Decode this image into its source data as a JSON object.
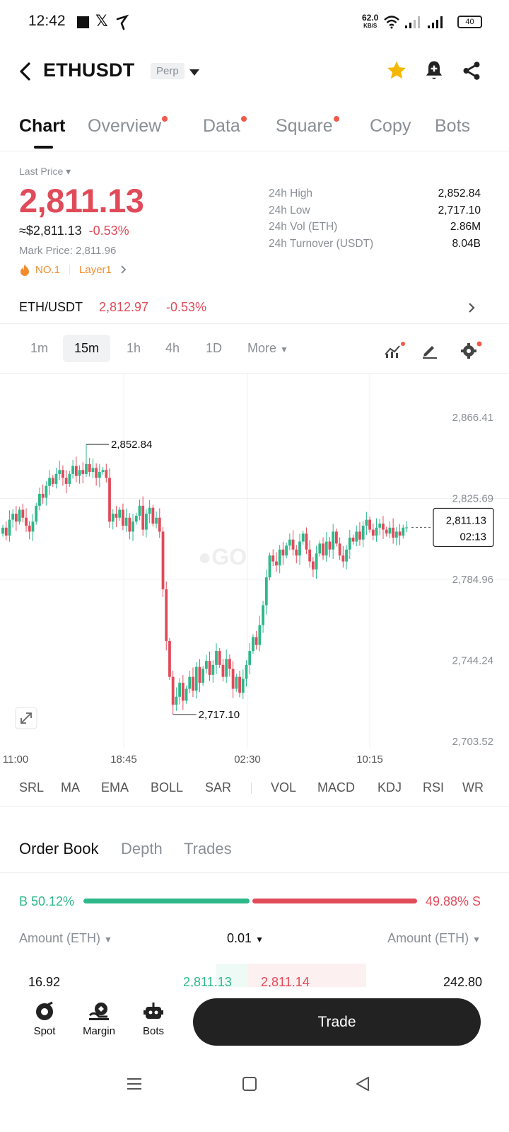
{
  "status_bar": {
    "time": "12:42",
    "speed": "62.0",
    "speed_unit": "KB/S",
    "battery": "40"
  },
  "header": {
    "symbol": "ETHUSDT",
    "contract_type": "Perp"
  },
  "tabs": [
    {
      "label": "Chart",
      "active": true,
      "dot": false
    },
    {
      "label": "Overview",
      "active": false,
      "dot": true
    },
    {
      "label": "Data",
      "active": false,
      "dot": true
    },
    {
      "label": "Square",
      "active": false,
      "dot": true
    },
    {
      "label": "Copy",
      "active": false,
      "dot": false
    },
    {
      "label": "Bots",
      "active": false,
      "dot": false
    }
  ],
  "price": {
    "label": "Last Price",
    "last": "2,811.13",
    "usd": "≈$2,811.13",
    "change": "-0.53%",
    "mark_label": "Mark Price:",
    "mark_value": "2,811.96",
    "rank": "NO.1",
    "category": "Layer1"
  },
  "stats": [
    {
      "label": "24h High",
      "value": "2,852.84"
    },
    {
      "label": "24h Low",
      "value": "2,717.10"
    },
    {
      "label": "24h Vol (ETH)",
      "value": "2.86M"
    },
    {
      "label": "24h Turnover (USDT)",
      "value": "8.04B"
    }
  ],
  "spot_pair": {
    "name": "ETH/USDT",
    "price": "2,812.97",
    "change": "-0.53%"
  },
  "timeframes": {
    "items": [
      "1m",
      "15m",
      "1h",
      "4h",
      "1D"
    ],
    "active": "15m",
    "more": "More"
  },
  "chart_data": {
    "type": "candlestick",
    "y_ticks": [
      "2,866.41",
      "2,825.69",
      "2,784.96",
      "2,744.24",
      "2,703.52"
    ],
    "ylim": [
      2703.52,
      2866.41
    ],
    "x_ticks": [
      "11:00",
      "18:45",
      "02:30",
      "10:15"
    ],
    "high_label": "2,852.84",
    "low_label": "2,717.10",
    "current_price": "2,811.13",
    "countdown": "02:13",
    "close_series": [
      2811,
      2807,
      2815,
      2818,
      2814,
      2820,
      2816,
      2812,
      2809,
      2814,
      2822,
      2828,
      2826,
      2832,
      2836,
      2833,
      2838,
      2840,
      2836,
      2833,
      2838,
      2842,
      2837,
      2840,
      2838,
      2843,
      2839,
      2841,
      2836,
      2839,
      2840,
      2836,
      2814,
      2818,
      2816,
      2820,
      2812,
      2816,
      2809,
      2814,
      2817,
      2822,
      2810,
      2818,
      2821,
      2813,
      2816,
      2809,
      2780,
      2754,
      2736,
      2722,
      2726,
      2733,
      2724,
      2730,
      2736,
      2729,
      2741,
      2733,
      2740,
      2744,
      2737,
      2742,
      2749,
      2742,
      2736,
      2745,
      2740,
      2730,
      2736,
      2728,
      2735,
      2742,
      2749,
      2756,
      2752,
      2762,
      2772,
      2786,
      2797,
      2794,
      2792,
      2800,
      2797,
      2802,
      2805,
      2800,
      2797,
      2804,
      2808,
      2800,
      2794,
      2790,
      2798,
      2803,
      2797,
      2804,
      2800,
      2809,
      2803,
      2797,
      2794,
      2800,
      2806,
      2804,
      2809,
      2805,
      2812,
      2815,
      2810,
      2807,
      2811,
      2813,
      2810,
      2808,
      2811,
      2806,
      2809,
      2807,
      2811,
      2811.13
    ]
  },
  "indicators": [
    "SRL",
    "MA",
    "EMA",
    "BOLL",
    "SAR",
    "VOL",
    "MACD",
    "KDJ",
    "RSI",
    "WR"
  ],
  "orderbook": {
    "tabs": [
      "Order Book",
      "Depth",
      "Trades"
    ],
    "buy_ratio": "B 50.12%",
    "sell_ratio": "49.88% S",
    "buy_fraction": 0.5012,
    "col_left": "Amount (ETH)",
    "tick": "0.01",
    "col_right": "Amount (ETH)",
    "rows": [
      {
        "bid_amount": "16.92",
        "bid_price": "2,811.13",
        "ask_price": "2,811.14",
        "ask_amount": "242.80"
      }
    ]
  },
  "bottom_bar": {
    "items": [
      {
        "label": "Spot",
        "icon": "spot-icon"
      },
      {
        "label": "Margin",
        "icon": "margin-icon"
      },
      {
        "label": "Bots",
        "icon": "bots-icon"
      }
    ],
    "trade_label": "Trade"
  },
  "colors": {
    "up": "#2eb88a",
    "down": "#e04b5a",
    "accent": "#f5b800"
  }
}
